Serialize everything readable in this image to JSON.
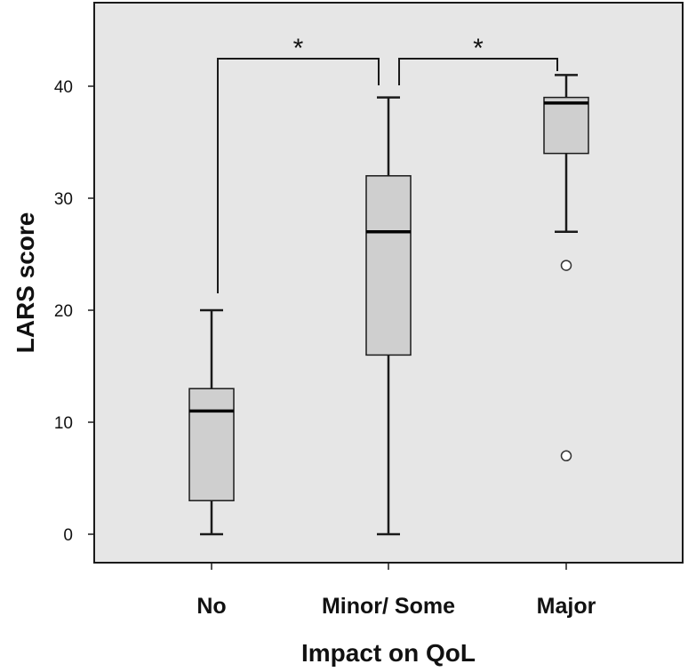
{
  "colors": {
    "plot_background": "#e6e6e6",
    "box_fill": "#cfcfcf",
    "stroke": "#1a1a1a",
    "outlier_fill": "#ffffff"
  },
  "chart_data": {
    "type": "box",
    "xlabel": "Impact on QoL",
    "ylabel": "LARS score",
    "ylim": [
      -2.5,
      47.5
    ],
    "yticks": [
      0,
      10,
      20,
      30,
      40
    ],
    "grid": false,
    "categories": [
      "No",
      "Minor/ Some",
      "Major"
    ],
    "boxes": [
      {
        "category": "No",
        "min": 0,
        "q1": 3,
        "median": 11,
        "q3": 13,
        "max": 20,
        "outliers": []
      },
      {
        "category": "Minor/ Some",
        "min": 0,
        "q1": 16,
        "median": 27,
        "q3": 32,
        "max": 39,
        "outliers": []
      },
      {
        "category": "Major",
        "min": 27,
        "q1": 34,
        "median": 38.5,
        "q3": 39,
        "max": 41,
        "outliers": [
          24,
          7
        ]
      }
    ],
    "significance": [
      {
        "from": "No",
        "to": "Minor/ Some",
        "label": "*"
      },
      {
        "from": "Minor/ Some",
        "to": "Major",
        "label": "*"
      }
    ]
  }
}
